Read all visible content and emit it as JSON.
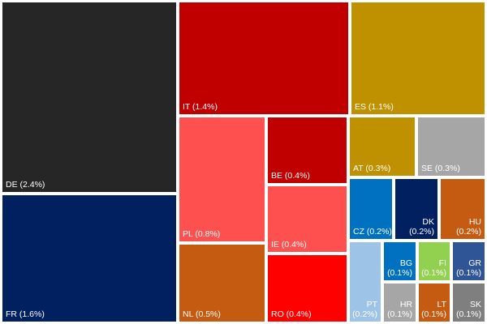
{
  "chart_data": {
    "type": "treemap",
    "items": [
      {
        "code": "DE",
        "value": 2.4,
        "label": "DE (2.4%)",
        "color": "#262626"
      },
      {
        "code": "FR",
        "value": 1.6,
        "label": "FR (1.6%)",
        "color": "#002060"
      },
      {
        "code": "IT",
        "value": 1.4,
        "label": "IT (1.4%)",
        "color": "#C00000"
      },
      {
        "code": "ES",
        "value": 1.1,
        "label": "ES (1.1%)",
        "color": "#BF9000"
      },
      {
        "code": "PL",
        "value": 0.8,
        "label": "PL (0.8%)",
        "color": "#FF5050"
      },
      {
        "code": "NL",
        "value": 0.5,
        "label": "NL (0.5%)",
        "color": "#C55A11"
      },
      {
        "code": "BE",
        "value": 0.4,
        "label": "BE (0.4%)",
        "color": "#C00000"
      },
      {
        "code": "IE",
        "value": 0.4,
        "label": "IE (0.4%)",
        "color": "#FF5050"
      },
      {
        "code": "RO",
        "value": 0.4,
        "label": "RO (0.4%)",
        "color": "#FF0000"
      },
      {
        "code": "AT",
        "value": 0.3,
        "label": "AT (0.3%)",
        "color": "#BF9000"
      },
      {
        "code": "SE",
        "value": 0.3,
        "label": "SE (0.3%)",
        "color": "#A6A6A6"
      },
      {
        "code": "CZ",
        "value": 0.2,
        "label": "CZ (0.2%)",
        "color": "#0070C0"
      },
      {
        "code": "DK",
        "value": 0.2,
        "label": "DK (0.2%)",
        "color": "#002060"
      },
      {
        "code": "HU",
        "value": 0.2,
        "label": "HU (0.2%)",
        "color": "#C55A11"
      },
      {
        "code": "PT",
        "value": 0.2,
        "label": "PT (0.2%)",
        "color": "#9DC3E6"
      },
      {
        "code": "BG",
        "value": 0.1,
        "label": "BG (0.1%)",
        "color": "#0070C0"
      },
      {
        "code": "FI",
        "value": 0.1,
        "label": "FI (0.1%)",
        "color": "#92D050"
      },
      {
        "code": "GR",
        "value": 0.1,
        "label": "GR (0.1%)",
        "color": "#2F5597"
      },
      {
        "code": "HR",
        "value": 0.1,
        "label": "HR (0.1%)",
        "color": "#A6A6A6"
      },
      {
        "code": "LT",
        "value": 0.1,
        "label": "LT (0.1%)",
        "color": "#C55A11"
      },
      {
        "code": "SK",
        "value": 0.1,
        "label": "SK (0.1%)",
        "color": "#7F7F7F"
      }
    ]
  }
}
